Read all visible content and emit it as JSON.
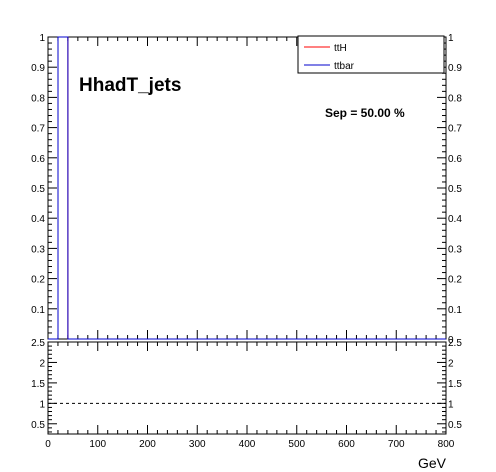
{
  "chart_data": [
    {
      "type": "line",
      "panel": "main",
      "annotations": {
        "title": "HhadT_jets",
        "separation": "Sep = 50.00 %"
      },
      "xlim": [
        0,
        800
      ],
      "ylim": [
        0,
        1
      ],
      "y_ticks": [
        "0.1",
        "0.2",
        "0.3",
        "0.4",
        "0.5",
        "0.6",
        "0.7",
        "0.8",
        "0.9",
        "1"
      ],
      "y_ticks_right": [
        "0",
        "0.1",
        "0.2",
        "0.3",
        "0.4",
        "0.5",
        "0.6",
        "0.7",
        "0.8",
        "0.9",
        "1"
      ],
      "legend": {
        "placement": "top-right",
        "entries": [
          {
            "label": "ttH",
            "color": "#ff0000"
          },
          {
            "label": "ttbar",
            "color": "#0000cc"
          }
        ]
      },
      "series": [
        {
          "name": "ttH",
          "color": "#ff0000",
          "x": [
            0,
            20,
            20,
            40,
            40,
            800
          ],
          "y": [
            0,
            0,
            1,
            1,
            0,
            0
          ]
        },
        {
          "name": "ttbar",
          "color": "#0000cc",
          "x": [
            0,
            20,
            20,
            40,
            40,
            800
          ],
          "y": [
            0,
            0,
            1,
            1,
            0,
            0
          ]
        }
      ]
    },
    {
      "type": "line",
      "panel": "ratio",
      "xlabel": "GeV",
      "xlim": [
        0,
        800
      ],
      "ylim": [
        0.25,
        2.5
      ],
      "x_ticks": [
        "0",
        "100",
        "200",
        "300",
        "400",
        "500",
        "600",
        "700",
        "800"
      ],
      "y_ticks_left": [
        "0.5",
        "1",
        "1.5",
        "2",
        "2.5"
      ],
      "y_ticks_right": [
        "0.5",
        "1",
        "1.5",
        "2",
        "2.5"
      ],
      "reference_line": {
        "y": 1,
        "style": "dashed"
      }
    }
  ]
}
